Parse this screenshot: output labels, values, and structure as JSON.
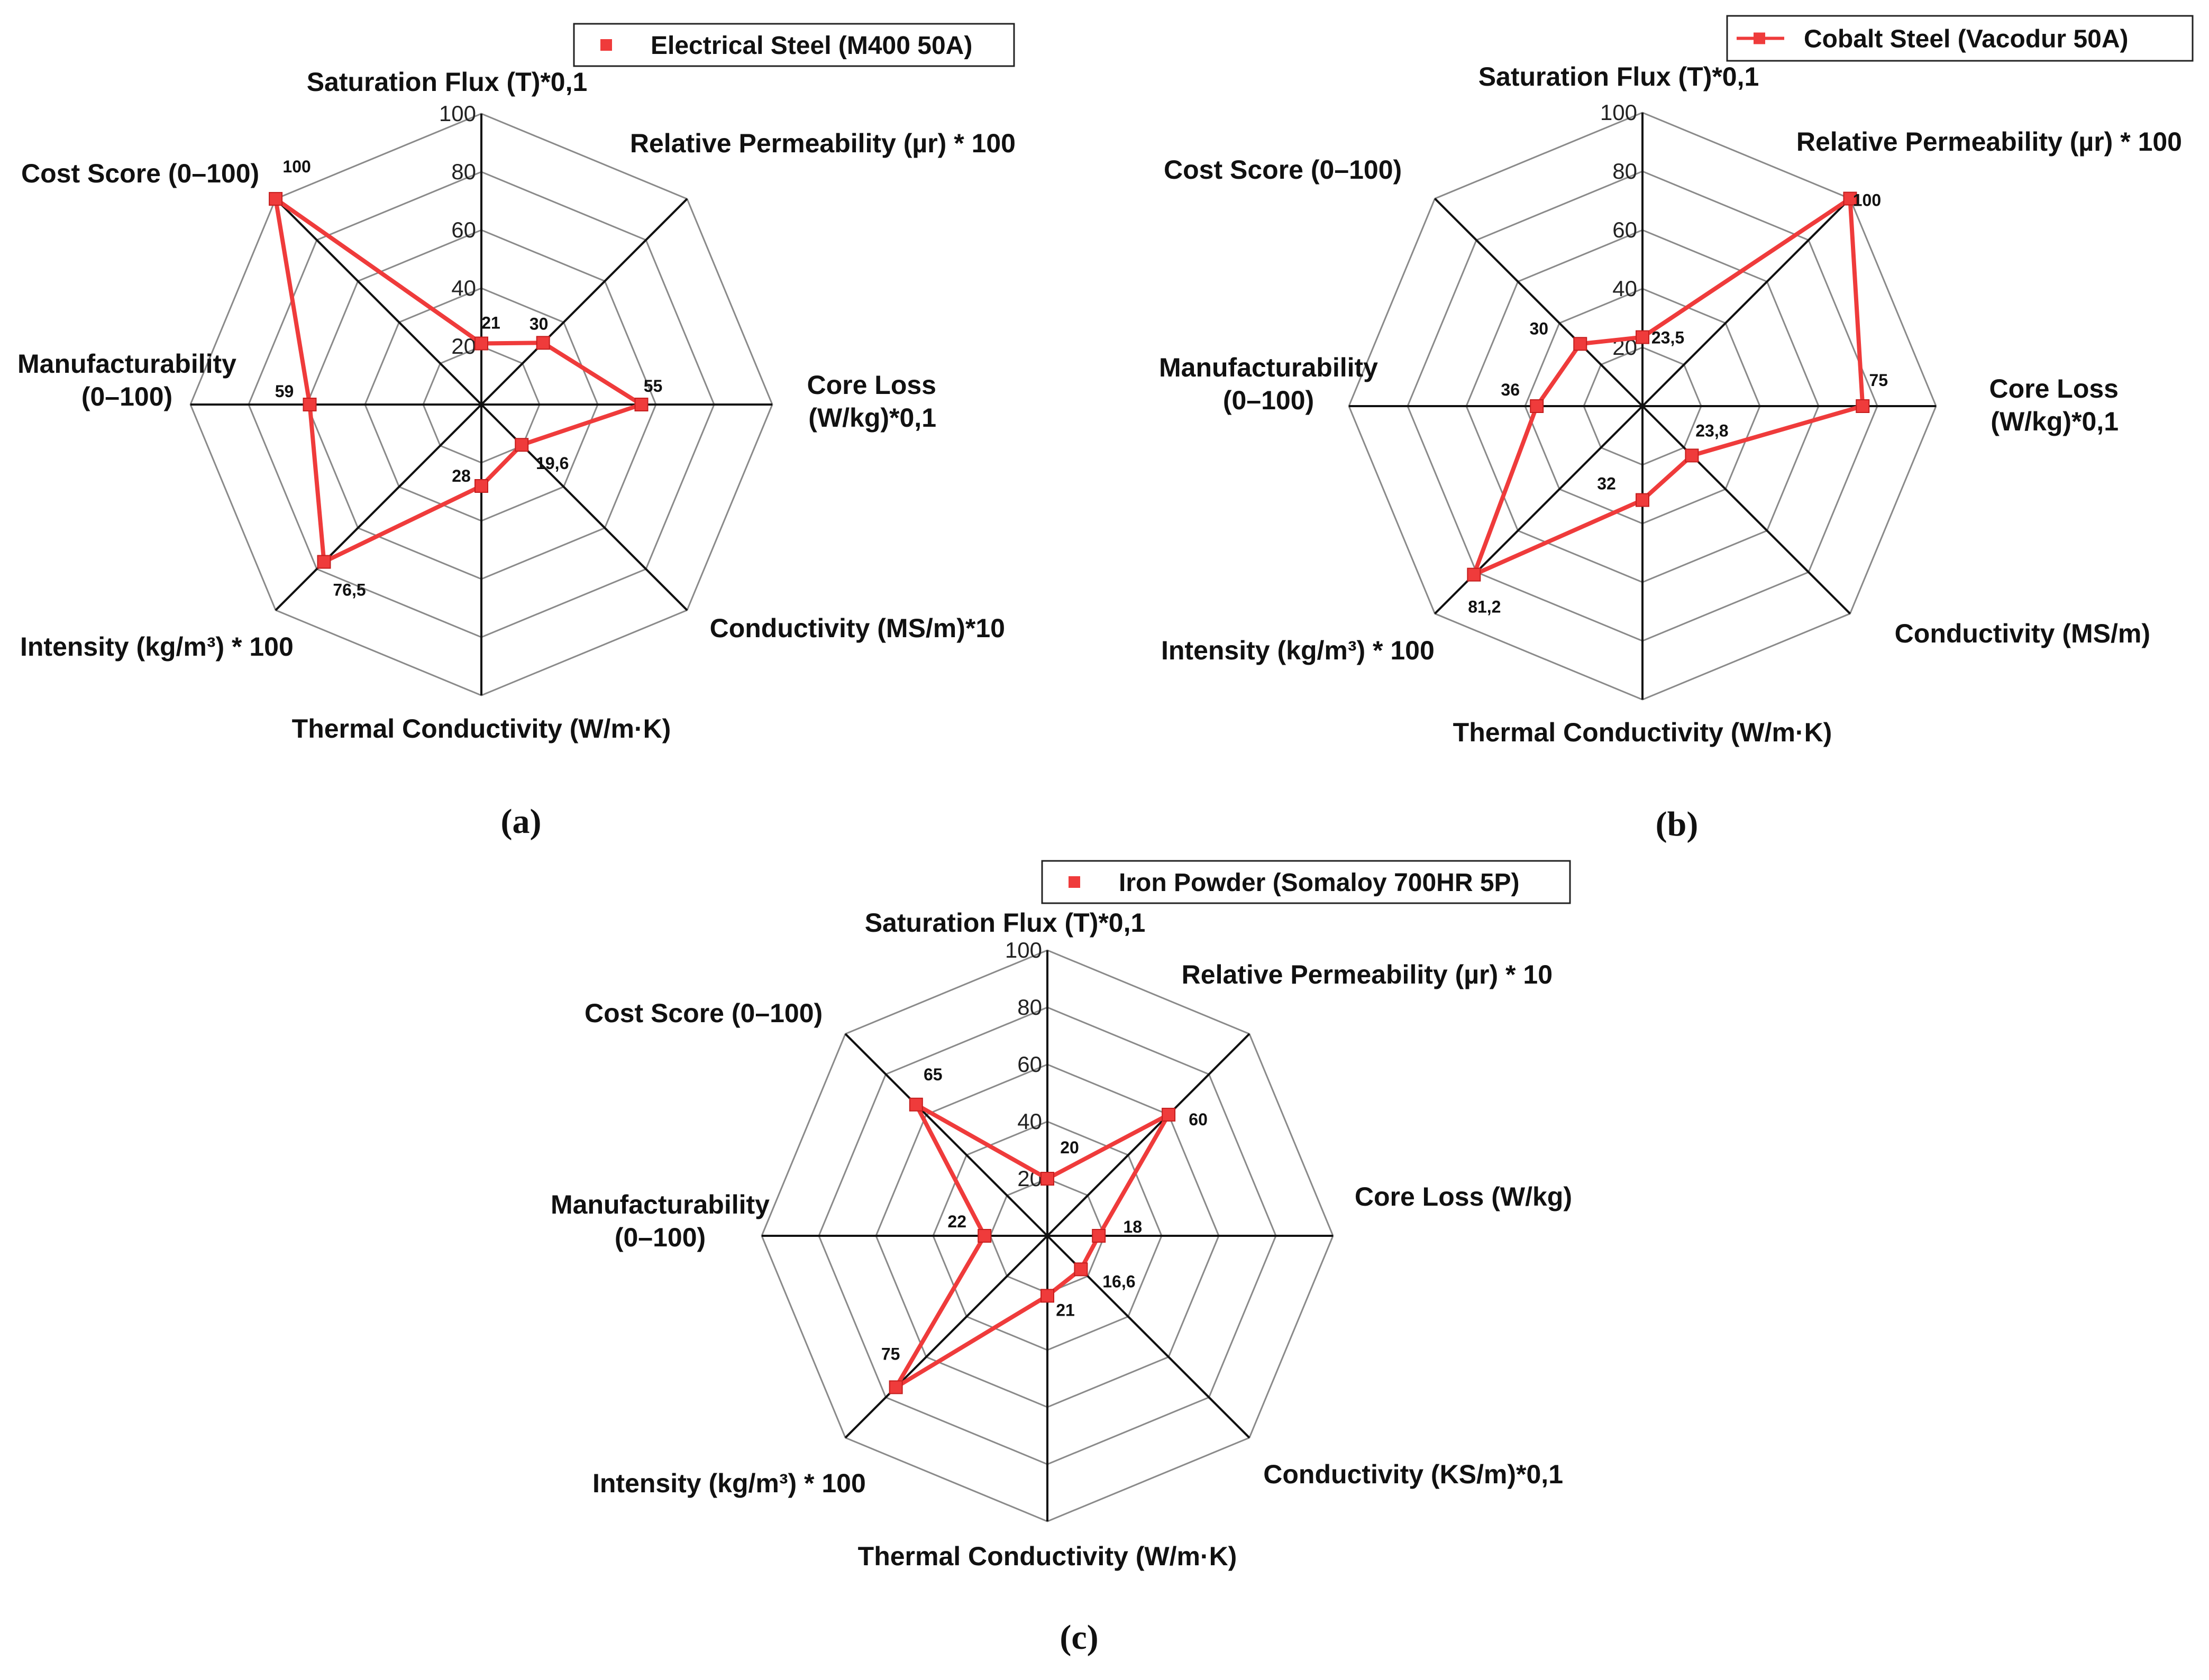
{
  "chart_data": [
    {
      "type": "radar",
      "panel": "(a)",
      "series": [
        {
          "name": "Electrical Steel (M400 50A)",
          "values": [
            21,
            30,
            55,
            19.6,
            28,
            76.5,
            59,
            100
          ]
        }
      ],
      "axes": [
        "Saturation Flux  (T)*0,1",
        "Relative Permeability (µr) * 100",
        "Core Loss (W/kg)*0,1",
        "Conductivity (MS/m)*10",
        "Thermal Conductivity (W/m·K)",
        "Intensity (kg/m³) * 100",
        "Manufacturability (0–100)",
        "Cost Score (0–100)"
      ],
      "data_labels": [
        "21",
        "30",
        "55",
        "19,6",
        "28",
        "76,5",
        "59",
        "100"
      ],
      "ticks": [
        "20",
        "40",
        "60",
        "80",
        "100"
      ],
      "rlim": [
        0,
        100
      ],
      "color": "#ef3b3b",
      "legend_marker": "square",
      "legend_position": "top-right"
    },
    {
      "type": "radar",
      "panel": "(b)",
      "series": [
        {
          "name": "Cobalt Steel (Vacodur 50A)",
          "values": [
            23.5,
            100,
            75,
            23.8,
            32,
            81.2,
            36,
            30
          ]
        }
      ],
      "axes": [
        "Saturation Flux (T)*0,1",
        "Relative Permeability (µr) * 100",
        "Core Loss (W/kg)*0,1",
        "Conductivity (MS/m)",
        "Thermal Conductivity (W/m·K)",
        "Intensity (kg/m³) * 100",
        "Manufacturability (0–100)",
        "Cost Score (0–100)"
      ],
      "data_labels": [
        "23,5",
        "100",
        "75",
        "23,8",
        "32",
        "81,2",
        "36",
        "30"
      ],
      "ticks": [
        "20",
        "40",
        "60",
        "80",
        "100"
      ],
      "rlim": [
        0,
        100
      ],
      "color": "#ef3b3b",
      "legend_marker": "line-square",
      "legend_position": "top-right"
    },
    {
      "type": "radar",
      "panel": "(c)",
      "series": [
        {
          "name": "Iron Powder (Somaloy 700HR 5P)",
          "values": [
            20,
            60,
            18,
            16.6,
            21,
            75,
            22,
            65
          ]
        }
      ],
      "axes": [
        "Saturation Flux (T)*0,1",
        "Relative Permeability (µr) * 10",
        "Core Loss (W/kg)",
        "Conductivity (KS/m)*0,1",
        "Thermal Conductivity (W/m·K)",
        "Intensity (kg/m³) * 100",
        "Manufacturability (0–100)",
        "Cost Score (0–100)"
      ],
      "data_labels": [
        "20",
        "60",
        "18",
        "16,6",
        "21",
        "75",
        "22",
        "65"
      ],
      "ticks": [
        "20",
        "40",
        "60",
        "80",
        "100"
      ],
      "rlim": [
        0,
        100
      ],
      "color": "#ef3b3b",
      "legend_marker": "square",
      "legend_position": "top"
    }
  ]
}
